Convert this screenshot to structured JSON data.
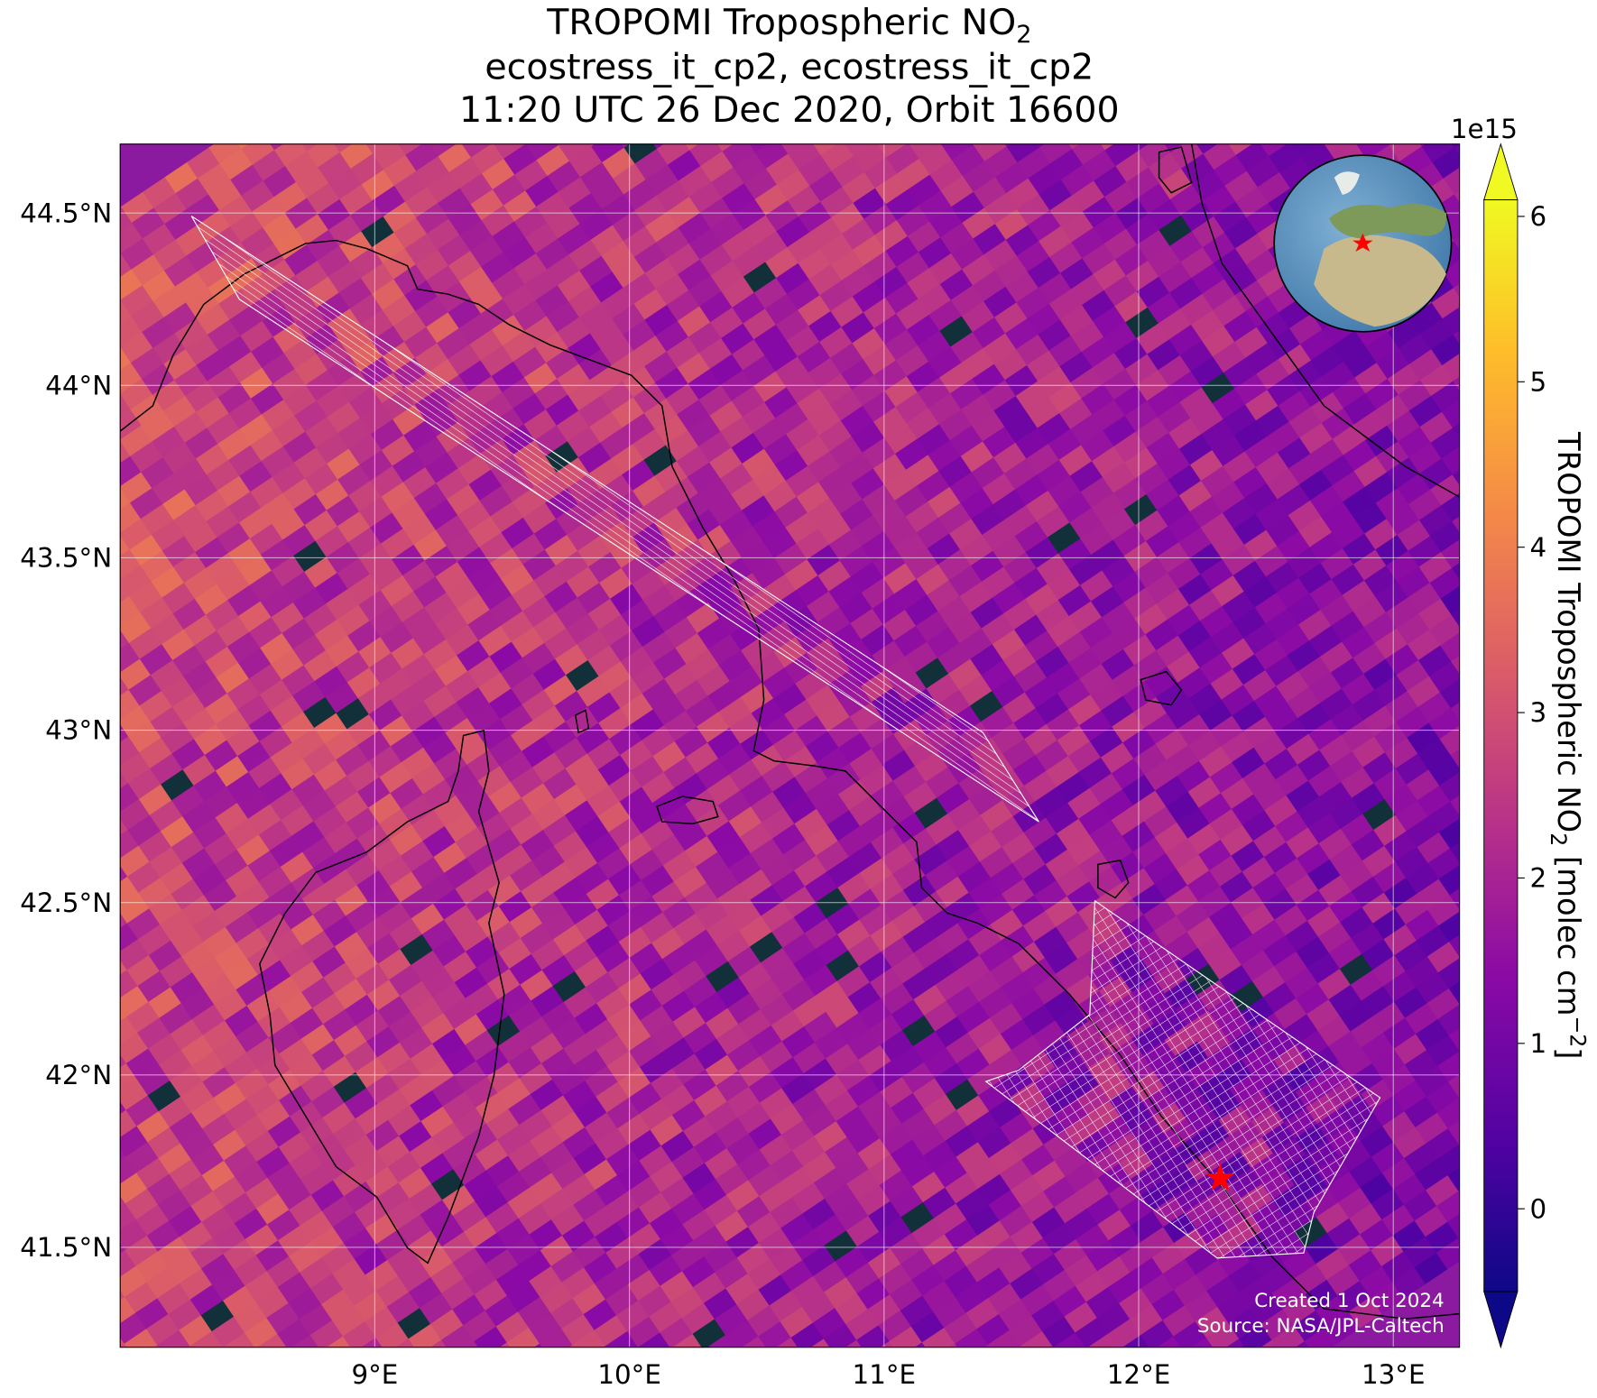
{
  "title": {
    "line1": "TROPOMI Tropospheric NO",
    "line1_sub": "2",
    "line2": "ecostress_it_cp2, ecostress_it_cp2",
    "line3": "11:20 UTC 26 Dec 2020, Orbit 16600"
  },
  "map": {
    "lon_range": [
      8.0,
      13.26
    ],
    "lat_range": [
      41.21,
      44.7
    ],
    "lon_ticks": [
      {
        "value": 9,
        "label": "9°E"
      },
      {
        "value": 10,
        "label": "10°E"
      },
      {
        "value": 11,
        "label": "11°E"
      },
      {
        "value": 12,
        "label": "12°E"
      },
      {
        "value": 13,
        "label": "13°E"
      }
    ],
    "lat_ticks": [
      {
        "value": 41.5,
        "label": "41.5°N"
      },
      {
        "value": 42,
        "label": "42°N"
      },
      {
        "value": 42.5,
        "label": "42.5°N"
      },
      {
        "value": 43,
        "label": "43°N"
      },
      {
        "value": 43.5,
        "label": "43.5°N"
      },
      {
        "value": 44,
        "label": "44°N"
      },
      {
        "value": 44.5,
        "label": "44.5°N"
      }
    ],
    "target": {
      "lon": 12.32,
      "lat": 41.7,
      "color": "#ff0000"
    }
  },
  "colorbar": {
    "clim": [
      -0.5,
      6.1
    ],
    "ticks": [
      0,
      1,
      2,
      3,
      4,
      5,
      6
    ],
    "exponent": "1e15",
    "label": "TROPOMI Tropospheric NO",
    "label_sub": "2",
    "label_units": " [molec cm",
    "label_sup": "−2",
    "label_end": "]"
  },
  "credits": {
    "created": "Created 1 Oct 2024",
    "source": "Source: NASA/JPL-Caltech"
  }
}
